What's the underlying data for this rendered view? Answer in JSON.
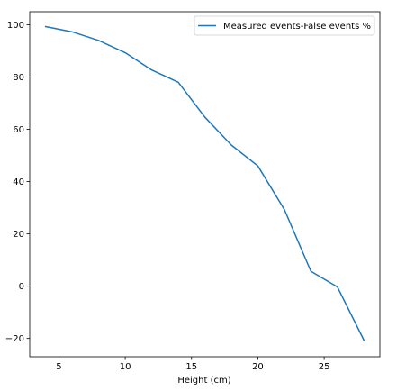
{
  "chart_data": {
    "type": "line",
    "title": "",
    "xlabel": "Height (cm)",
    "ylabel": "",
    "xlim": [
      2.8,
      29.2
    ],
    "ylim": [
      -27.0,
      105.0
    ],
    "xticks": [
      5,
      10,
      15,
      20,
      25
    ],
    "yticks": [
      -20,
      0,
      20,
      40,
      60,
      80,
      100
    ],
    "grid": false,
    "legend_position": "top-right",
    "series": [
      {
        "name": "Measured events-False events %",
        "color": "#1f77b4",
        "x": [
          4,
          6,
          8,
          10,
          12,
          14,
          16,
          18,
          20,
          22,
          24,
          26,
          28
        ],
        "y": [
          99.3,
          97.3,
          94.0,
          89.3,
          82.7,
          78.0,
          64.7,
          54.0,
          46.0,
          29.3,
          5.7,
          -0.3,
          -20.7
        ]
      }
    ]
  }
}
